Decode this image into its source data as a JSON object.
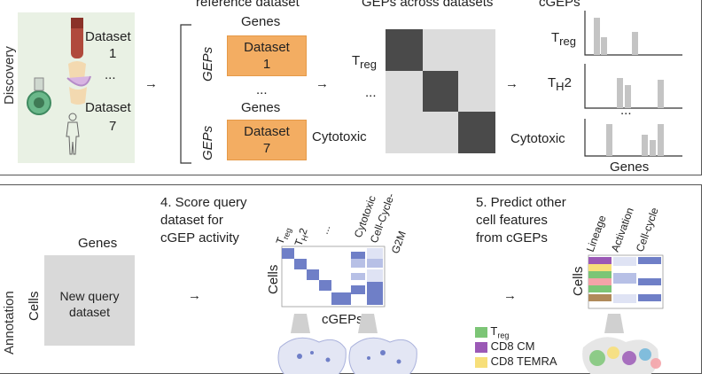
{
  "discovery": {
    "side_label": "Discovery",
    "datasets": {
      "first": "Dataset",
      "first_num": "1",
      "ellipsis": "...",
      "last": "Dataset",
      "last_num": "7"
    },
    "reference_header": "reference dataset",
    "genes_1": "Genes",
    "genes_2": "Genes",
    "geps_label": "GEPs",
    "box1_line1": "Dataset",
    "box1_line2": "1",
    "box_ellipsis": "...",
    "box2_line1": "Dataset",
    "box2_line2": "7",
    "across_header": "GEPs across datasets",
    "treg": "T",
    "treg_sub": "reg",
    "mid_ellipsis": "...",
    "cytotoxic": "Cytotoxic",
    "cgeps_header": "cGEPs",
    "cgep_treg": "T",
    "cgep_treg_sub": "reg",
    "cgep_th2": "T",
    "cgep_th2_sub": "H",
    "cgep_th2_tail": "2",
    "cgep_ellipsis": "...",
    "cgep_cytotoxic": "Cytotoxic",
    "cgep_genes": "Genes",
    "arrow": "→"
  },
  "annotation": {
    "side_label": "Annotation",
    "cells": "Cells",
    "genes": "Genes",
    "query_line1": "New query",
    "query_line2": "dataset",
    "step4_line1": "4. Score query",
    "step4_line2": "dataset for",
    "step4_line3": "cGEP activity",
    "heat_cols": {
      "treg": "T",
      "treg_sub": "reg",
      "th2": "T",
      "th2_sub": "H",
      "th2_tail": "2",
      "ellipsis": "...",
      "cytotoxic": "Cytotoxic",
      "cellcycle": "Cell-Cycle-",
      "g2m": "G2M"
    },
    "heat_cells": "Cells",
    "heat_xlabel": "cGEPs",
    "step5_line1": "5. Predict other",
    "step5_line2": "cell features",
    "step5_line3": "from cGEPs",
    "feat_cols": [
      "Lineage",
      "Activation",
      "Cell-cycle"
    ],
    "feat_cells": "Cells",
    "legend": [
      {
        "label": "T",
        "sub": "reg",
        "color": "#7cc576"
      },
      {
        "label": "CD8 CM",
        "sub": "",
        "color": "#9b59b6"
      },
      {
        "label": "CD8 TEMRA",
        "sub": "",
        "color": "#f7df7a"
      }
    ],
    "arrow": "→"
  },
  "colors": {
    "orange": "#f3ad62",
    "heat_dark": "#4a4a4a",
    "heat_light": "#dcdcdc",
    "bar_gray": "#c4c4c4",
    "query_box": "#d9d9d9",
    "blue": "#6f7fc7"
  }
}
